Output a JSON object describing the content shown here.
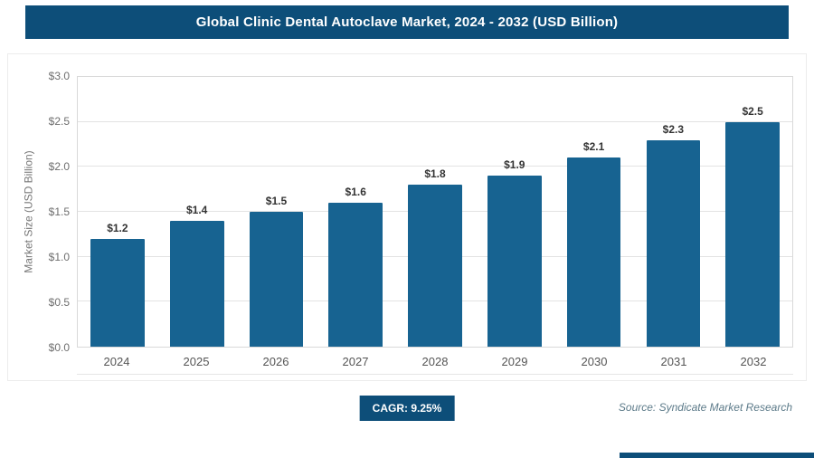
{
  "header": {
    "title": "Global Clinic Dental Autoclave Market, 2024 - 2032 (USD Billion)"
  },
  "chart_data": {
    "type": "bar",
    "title": "Global Clinic Dental Autoclave Market, 2024 - 2032 (USD Billion)",
    "categories": [
      "2024",
      "2025",
      "2026",
      "2027",
      "2028",
      "2029",
      "2030",
      "2031",
      "2032"
    ],
    "values": [
      1.2,
      1.4,
      1.5,
      1.6,
      1.8,
      1.9,
      2.1,
      2.3,
      2.5
    ],
    "value_labels": [
      "$1.2",
      "$1.4",
      "$1.5",
      "$1.6",
      "$1.8",
      "$1.9",
      "$2.1",
      "$2.3",
      "$2.5"
    ],
    "xlabel": "",
    "ylabel": "Market Size (USD Billion)",
    "ylim": [
      0,
      3.0
    ],
    "yticks": [
      0,
      0.5,
      1.0,
      1.5,
      2.0,
      2.5,
      3.0
    ],
    "ytick_labels": [
      "$0.0",
      "$0.5",
      "$1.0",
      "$1.5",
      "$2.0",
      "$2.5",
      "$3.0"
    ],
    "grid": true,
    "legend": "none",
    "annotations": [
      "CAGR: 9.25%"
    ]
  },
  "footer": {
    "cagr_label": "CAGR: 9.25%",
    "source": "Source: Syndicate Market Research"
  },
  "colors": {
    "header_bg": "#0d4e79",
    "bar": "#176391",
    "grid": "#e3e3e3",
    "tick_text": "#6e6e6e",
    "label_text": "#333333",
    "source_text": "#5c7a89"
  }
}
